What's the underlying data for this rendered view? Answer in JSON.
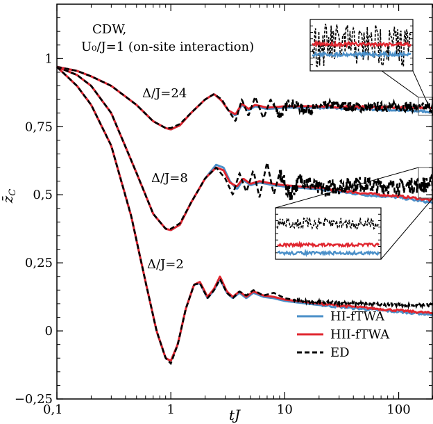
{
  "chart_data": {
    "type": "line",
    "title": "",
    "xlabel": "tJ",
    "ylabel": "z̄_C",
    "xscale": "log",
    "xlim": [
      0.1,
      200
    ],
    "ylim": [
      -0.25,
      1.2
    ],
    "xticks": [
      {
        "value": 0.1,
        "label": "0,1"
      },
      {
        "value": 1,
        "label": "1"
      },
      {
        "value": 10,
        "label": "10"
      },
      {
        "value": 100,
        "label": "100"
      }
    ],
    "yticks": [
      {
        "value": -0.25,
        "label": "−0,25"
      },
      {
        "value": 0,
        "label": "0"
      },
      {
        "value": 0.25,
        "label": "0,25"
      },
      {
        "value": 0.5,
        "label": "0,5"
      },
      {
        "value": 0.75,
        "label": "0,75"
      },
      {
        "value": 1,
        "label": "1"
      }
    ],
    "annotations": {
      "cdw": "CDW,",
      "interaction": "U₀/J=1 (on-site interaction)",
      "delta24": "Δ/J=24",
      "delta8": "Δ/J=8",
      "delta2": "Δ/J=2"
    },
    "legend": {
      "position": "lower-right",
      "entries": [
        {
          "label": "HI-fTWA",
          "color": "#4a8fc8",
          "style": "solid"
        },
        {
          "label": "HII-fTWA",
          "color": "#e0262f",
          "style": "solid"
        },
        {
          "label": "ED",
          "color": "#000000",
          "style": "dashed"
        }
      ]
    },
    "groups": [
      {
        "label": "Δ/J=24",
        "series": {
          "HI": {
            "x": [
              0.1,
              0.15,
              0.2,
              0.3,
              0.5,
              0.7,
              0.9,
              1.0,
              1.2,
              1.5,
              2.0,
              2.4,
              2.8,
              3.2,
              3.7,
              4.2,
              4.8,
              5.5,
              7,
              10,
              20,
              50,
              100,
              200
            ],
            "y": [
              0.97,
              0.955,
              0.935,
              0.9,
              0.83,
              0.77,
              0.745,
              0.74,
              0.755,
              0.8,
              0.85,
              0.87,
              0.845,
              0.81,
              0.79,
              0.83,
              0.81,
              0.825,
              0.815,
              0.82,
              0.82,
              0.815,
              0.81,
              0.805
            ]
          },
          "HII": {
            "x": [
              0.1,
              0.15,
              0.2,
              0.3,
              0.5,
              0.7,
              0.9,
              1.0,
              1.2,
              1.5,
              2.0,
              2.4,
              2.8,
              3.2,
              3.7,
              4.2,
              4.8,
              5.5,
              7,
              10,
              20,
              50,
              100,
              200
            ],
            "y": [
              0.97,
              0.955,
              0.935,
              0.9,
              0.83,
              0.77,
              0.745,
              0.74,
              0.755,
              0.8,
              0.85,
              0.87,
              0.845,
              0.81,
              0.795,
              0.835,
              0.815,
              0.83,
              0.82,
              0.825,
              0.825,
              0.822,
              0.82,
              0.82
            ]
          },
          "ED": {
            "x": [
              0.1,
              0.15,
              0.2,
              0.3,
              0.5,
              0.7,
              0.9,
              1.0,
              1.2,
              1.5,
              2.0,
              2.4,
              2.8,
              3.2,
              3.7,
              4.2,
              4.8,
              5.5,
              6.5,
              7.5,
              9,
              11,
              15,
              25,
              50,
              100,
              200
            ],
            "y": [
              0.97,
              0.955,
              0.935,
              0.9,
              0.83,
              0.77,
              0.745,
              0.745,
              0.76,
              0.8,
              0.85,
              0.87,
              0.85,
              0.81,
              0.77,
              0.85,
              0.79,
              0.86,
              0.78,
              0.85,
              0.79,
              0.84,
              0.81,
              0.83,
              0.82,
              0.825,
              0.82
            ]
          }
        }
      },
      {
        "label": "Δ/J=8",
        "series": {
          "HI": {
            "x": [
              0.1,
              0.15,
              0.2,
              0.3,
              0.5,
              0.7,
              0.9,
              1.0,
              1.2,
              1.5,
              2.0,
              2.5,
              2.9,
              3.3,
              3.8,
              4.3,
              5.0,
              6,
              8,
              10,
              20,
              50,
              100,
              200
            ],
            "y": [
              0.97,
              0.94,
              0.9,
              0.8,
              0.58,
              0.43,
              0.375,
              0.37,
              0.39,
              0.47,
              0.56,
              0.61,
              0.6,
              0.55,
              0.52,
              0.555,
              0.535,
              0.545,
              0.535,
              0.53,
              0.52,
              0.5,
              0.49,
              0.47
            ]
          },
          "HII": {
            "x": [
              0.1,
              0.15,
              0.2,
              0.3,
              0.5,
              0.7,
              0.9,
              1.0,
              1.2,
              1.5,
              2.0,
              2.5,
              2.9,
              3.3,
              3.8,
              4.3,
              5.0,
              6,
              8,
              10,
              20,
              50,
              100,
              200
            ],
            "y": [
              0.97,
              0.94,
              0.9,
              0.8,
              0.58,
              0.43,
              0.375,
              0.37,
              0.39,
              0.47,
              0.56,
              0.6,
              0.59,
              0.545,
              0.53,
              0.56,
              0.54,
              0.55,
              0.54,
              0.535,
              0.525,
              0.505,
              0.495,
              0.48
            ]
          },
          "ED": {
            "x": [
              0.1,
              0.15,
              0.2,
              0.3,
              0.5,
              0.7,
              0.9,
              1.0,
              1.2,
              1.5,
              2.0,
              2.5,
              3.0,
              3.5,
              4.0,
              4.6,
              5.3,
              6,
              7,
              8,
              9,
              11,
              14,
              20,
              40,
              100,
              200
            ],
            "y": [
              0.97,
              0.94,
              0.9,
              0.8,
              0.58,
              0.43,
              0.375,
              0.375,
              0.395,
              0.47,
              0.56,
              0.6,
              0.56,
              0.5,
              0.58,
              0.51,
              0.59,
              0.49,
              0.62,
              0.5,
              0.58,
              0.5,
              0.56,
              0.52,
              0.54,
              0.53,
              0.54
            ]
          }
        }
      },
      {
        "label": "Δ/J=2",
        "series": {
          "HI": {
            "x": [
              0.1,
              0.15,
              0.2,
              0.3,
              0.45,
              0.6,
              0.75,
              0.9,
              1.0,
              1.15,
              1.35,
              1.6,
              1.8,
              2.1,
              2.4,
              2.7,
              3.1,
              3.5,
              4.0,
              4.6,
              5.3,
              6.5,
              8,
              10,
              20,
              50,
              100,
              200
            ],
            "y": [
              0.97,
              0.9,
              0.83,
              0.68,
              0.42,
              0.18,
              0.0,
              -0.1,
              -0.11,
              -0.05,
              0.08,
              0.17,
              0.175,
              0.12,
              0.15,
              0.19,
              0.14,
              0.12,
              0.14,
              0.12,
              0.14,
              0.125,
              0.12,
              0.11,
              0.095,
              0.08,
              0.07,
              0.06
            ]
          },
          "HII": {
            "x": [
              0.1,
              0.15,
              0.2,
              0.3,
              0.45,
              0.6,
              0.75,
              0.9,
              1.0,
              1.15,
              1.35,
              1.6,
              1.8,
              2.1,
              2.4,
              2.7,
              3.1,
              3.5,
              4.0,
              4.6,
              5.3,
              6.5,
              8,
              10,
              20,
              50,
              100,
              200
            ],
            "y": [
              0.97,
              0.9,
              0.83,
              0.68,
              0.42,
              0.18,
              0.0,
              -0.1,
              -0.11,
              -0.05,
              0.08,
              0.17,
              0.18,
              0.125,
              0.155,
              0.2,
              0.145,
              0.125,
              0.145,
              0.125,
              0.145,
              0.13,
              0.125,
              0.115,
              0.1,
              0.085,
              0.075,
              0.065
            ]
          },
          "ED": {
            "x": [
              0.1,
              0.15,
              0.2,
              0.3,
              0.45,
              0.6,
              0.75,
              0.9,
              1.0,
              1.15,
              1.35,
              1.6,
              1.8,
              2.1,
              2.4,
              2.7,
              3.1,
              3.5,
              4.0,
              4.6,
              5.3,
              6.5,
              8,
              10,
              14,
              20,
              50,
              100,
              200
            ],
            "y": [
              0.97,
              0.9,
              0.83,
              0.68,
              0.42,
              0.18,
              0.0,
              -0.1,
              -0.12,
              -0.05,
              0.08,
              0.17,
              0.175,
              0.12,
              0.15,
              0.19,
              0.14,
              0.12,
              0.145,
              0.13,
              0.15,
              0.13,
              0.14,
              0.12,
              0.11,
              0.105,
              0.1,
              0.095,
              0.095
            ]
          }
        }
      }
    ],
    "insets": [
      {
        "label": "top-inset"
      },
      {
        "label": "middle-inset"
      }
    ]
  }
}
